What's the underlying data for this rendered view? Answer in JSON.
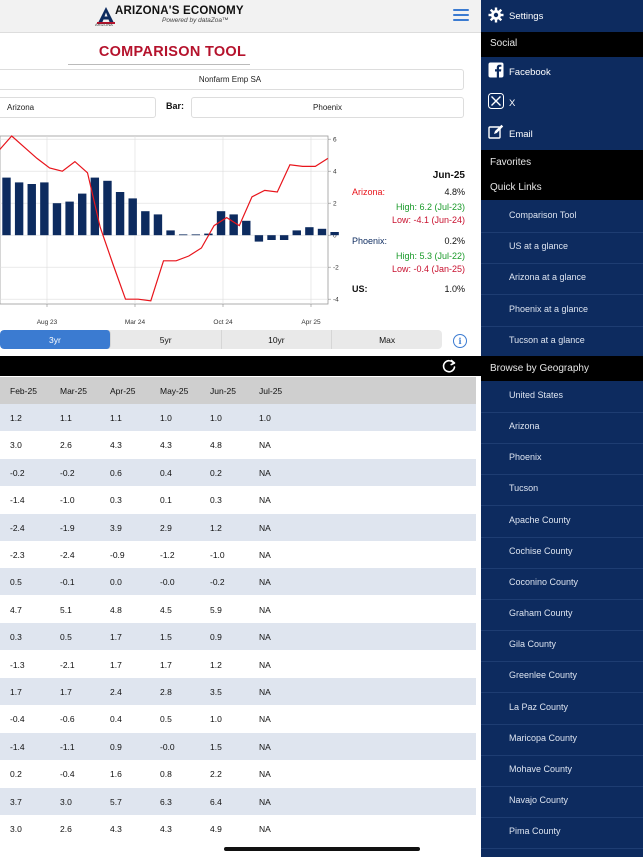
{
  "header": {
    "brand": "ARIZONA'S ECONOMY",
    "brand_sub": "Powered by dataZoa™",
    "logo_letter": "A",
    "logo_sub": "ARIZONA"
  },
  "title": "COMPARISON TOOL",
  "series_field": "Nonfarm Emp SA",
  "line_field": "Arizona",
  "bar_label": "Bar:",
  "bar_field": "Phoenix",
  "info": {
    "date": "Jun-25",
    "arizona_label": "Arizona:",
    "arizona_value": "4.8%",
    "arizona_high": "High: 6.2 (Jul-23)",
    "arizona_low": "Low: -4.1 (Jun-24)",
    "phoenix_label": "Phoenix:",
    "phoenix_value": "0.2%",
    "phoenix_high": "High: 5.3 (Jul-22)",
    "phoenix_low": "Low: -0.4 (Jan-25)",
    "us_label": "US:",
    "us_value": "1.0%"
  },
  "colors": {
    "line": "#e8141b",
    "bar": "#0d2b5f",
    "high": "#1a9a2a",
    "low": "#c8102e",
    "accent": "#3b7bd1",
    "sidebar": "#0d2b5f"
  },
  "range_tabs": [
    {
      "label": "3yr",
      "active": true
    },
    {
      "label": "5yr"
    },
    {
      "label": "10yr"
    },
    {
      "label": "Max"
    }
  ],
  "chart_data": {
    "type": "bar",
    "x_ticks": [
      "Aug 23",
      "Mar 24",
      "Oct 24",
      "Apr 25"
    ],
    "y_ticks": [
      "6",
      "4",
      "2",
      "0",
      "-2",
      "-4"
    ],
    "ylim": [
      -4.3,
      6.2
    ],
    "grid": true,
    "series": [
      {
        "name": "Phoenix",
        "type": "bar",
        "values": [
          3.6,
          3.3,
          3.2,
          3.3,
          2.0,
          2.1,
          2.6,
          3.6,
          3.4,
          2.7,
          2.3,
          1.5,
          1.3,
          0.3,
          0.05,
          0.05,
          0.1,
          1.5,
          1.3,
          0.9,
          -0.4,
          -0.3,
          -0.3,
          0.3,
          0.5,
          0.4,
          0.2
        ]
      },
      {
        "name": "Arizona",
        "type": "line",
        "values": [
          5.3,
          6.2,
          5.5,
          4.8,
          4.2,
          4.0,
          4.6,
          3.9,
          0.5,
          -1.8,
          -4.0,
          -4.0,
          -4.1,
          -1.6,
          -1.6,
          -1.3,
          -0.8,
          0.6,
          1.1,
          0.6,
          2.4,
          2.8,
          2.7,
          4.4,
          4.3,
          4.3,
          4.8
        ]
      }
    ]
  },
  "table": {
    "headers": [
      "Feb-25",
      "Mar-25",
      "Apr-25",
      "May-25",
      "Jun-25",
      "Jul-25"
    ],
    "rows": [
      [
        "1.2",
        "1.1",
        "1.1",
        "1.0",
        "1.0",
        "1.0"
      ],
      [
        "3.0",
        "2.6",
        "4.3",
        "4.3",
        "4.8",
        "NA"
      ],
      [
        "-0.2",
        "-0.2",
        "0.6",
        "0.4",
        "0.2",
        "NA"
      ],
      [
        "-1.4",
        "-1.0",
        "0.3",
        "0.1",
        "0.3",
        "NA"
      ],
      [
        "-2.4",
        "-1.9",
        "3.9",
        "2.9",
        "1.2",
        "NA"
      ],
      [
        "-2.3",
        "-2.4",
        "-0.9",
        "-1.2",
        "-1.0",
        "NA"
      ],
      [
        "0.5",
        "-0.1",
        "0.0",
        "-0.0",
        "-0.2",
        "NA"
      ],
      [
        "4.7",
        "5.1",
        "4.8",
        "4.5",
        "5.9",
        "NA"
      ],
      [
        "0.3",
        "0.5",
        "1.7",
        "1.5",
        "0.9",
        "NA"
      ],
      [
        "-1.3",
        "-2.1",
        "1.7",
        "1.7",
        "1.2",
        "NA"
      ],
      [
        "1.7",
        "1.7",
        "2.4",
        "2.8",
        "3.5",
        "NA"
      ],
      [
        "-0.4",
        "-0.6",
        "0.4",
        "0.5",
        "1.0",
        "NA"
      ],
      [
        "-1.4",
        "-1.1",
        "0.9",
        "-0.0",
        "1.5",
        "NA"
      ],
      [
        "0.2",
        "-0.4",
        "1.6",
        "0.8",
        "2.2",
        "NA"
      ],
      [
        "3.7",
        "3.0",
        "5.7",
        "6.3",
        "6.4",
        "NA"
      ],
      [
        "3.0",
        "2.6",
        "4.3",
        "4.3",
        "4.9",
        "NA"
      ]
    ]
  },
  "sidebar": {
    "settings": "Settings",
    "social_header": "Social",
    "social": [
      "Facebook",
      "X",
      "Email"
    ],
    "favorites_header": "Favorites",
    "quick_links_header": "Quick Links",
    "quick_links": [
      "Comparison Tool",
      "US at a glance",
      "Arizona at a glance",
      "Phoenix at a glance",
      "Tucson at a glance"
    ],
    "geography_header": "Browse by Geography",
    "geography": [
      "United States",
      "Arizona",
      "Phoenix",
      "Tucson",
      "Apache County",
      "Cochise County",
      "Coconino County",
      "Graham County",
      "Gila County",
      "Greenlee County",
      "La Paz County",
      "Maricopa County",
      "Mohave County",
      "Navajo County",
      "Pima County"
    ]
  }
}
